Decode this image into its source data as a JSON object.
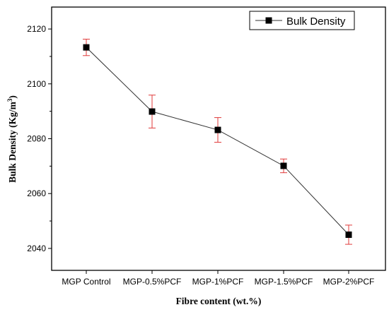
{
  "chart_data": {
    "type": "line",
    "categories": [
      "MGP Control",
      "MGP-0.5%PCF",
      "MGP-1%PCF",
      "MGP-1.5%PCF",
      "MGP-2%PCF"
    ],
    "series": [
      {
        "name": "Bulk Density",
        "values": [
          2113.3,
          2089.9,
          2083.2,
          2070.1,
          2045.0
        ],
        "error": [
          3.0,
          6.0,
          4.5,
          2.5,
          3.5
        ],
        "line_color": "#333333",
        "marker_color": "#000000",
        "marker": "square",
        "error_color": "#e03a3a"
      }
    ],
    "xlabel": "Fibre content (wt.%)",
    "ylabel": "Bulk Density (Kg/m",
    "ylabel_superscript": "3",
    "ylabel_suffix": ")",
    "ylim": [
      2032,
      2128
    ],
    "yticks": [
      "2040",
      "2060",
      "2080",
      "2100",
      "2120"
    ],
    "legend": "top-right",
    "grid": false
  }
}
